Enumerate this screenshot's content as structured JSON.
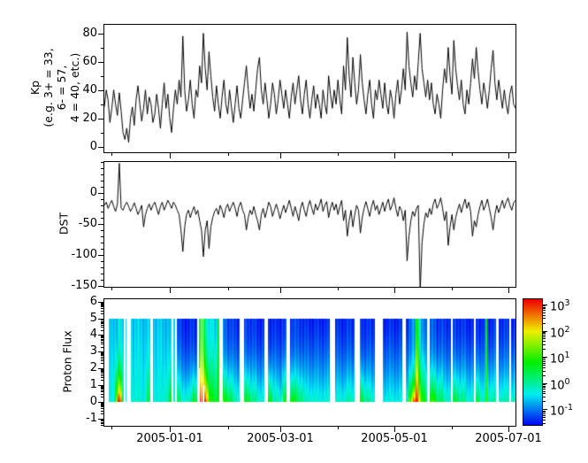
{
  "figure": {
    "background": "#ffffff",
    "line_color": "#000000",
    "frame_color": "#000000"
  },
  "x_axis": {
    "epoch_note": "day 0 = left edge of shared x axis",
    "range_days": [
      0,
      220
    ],
    "major_ticks": [
      {
        "day": 35,
        "label": "2005-01-01"
      },
      {
        "day": 94,
        "label": "2005-03-01"
      },
      {
        "day": 155,
        "label": "2005-05-01"
      },
      {
        "day": 216,
        "label": "2005-07-01"
      }
    ],
    "minor_tick_days": [
      4,
      66,
      125,
      186
    ]
  },
  "chart_data": [
    {
      "type": "line",
      "id": "kp",
      "ylabel_lines": [
        "Kp",
        "(e.g. 3+ = 33,",
        "6- = 57,",
        "4 = 40, etc.)"
      ],
      "ylim": [
        -4,
        86
      ],
      "yticks": [
        0,
        20,
        40,
        60,
        80
      ],
      "y_minor_step": 10,
      "line_color": "#000000",
      "x_range": [
        0,
        220
      ],
      "values": [
        28,
        40,
        33,
        17,
        27,
        40,
        30,
        22,
        38,
        25,
        10,
        5,
        13,
        3,
        20,
        28,
        15,
        33,
        43,
        30,
        18,
        27,
        40,
        23,
        35,
        30,
        17,
        23,
        37,
        27,
        13,
        30,
        45,
        27,
        37,
        20,
        10,
        27,
        40,
        30,
        47,
        35,
        78,
        40,
        25,
        33,
        47,
        30,
        20,
        40,
        35,
        57,
        45,
        80,
        55,
        40,
        67,
        50,
        35,
        25,
        43,
        30,
        20,
        35,
        47,
        30,
        23,
        40,
        28,
        17,
        30,
        43,
        27,
        20,
        33,
        45,
        57,
        40,
        27,
        37,
        25,
        40,
        55,
        63,
        40,
        30,
        45,
        33,
        20,
        30,
        45,
        37,
        23,
        33,
        47,
        37,
        27,
        40,
        30,
        20,
        35,
        45,
        30,
        40,
        50,
        33,
        23,
        37,
        47,
        30,
        20,
        33,
        43,
        27,
        37,
        30,
        20,
        40,
        30,
        23,
        50,
        37,
        27,
        40,
        30,
        47,
        33,
        23,
        57,
        40,
        77,
        50,
        35,
        63,
        45,
        30,
        40,
        65,
        45,
        33,
        23,
        37,
        47,
        30,
        20,
        40,
        33,
        47,
        37,
        27,
        45,
        30,
        23,
        40,
        33,
        20,
        37,
        47,
        30,
        40,
        55,
        40,
        81,
        57,
        45,
        35,
        50,
        40,
        60,
        80,
        55,
        45,
        35,
        47,
        33,
        45,
        30,
        23,
        37,
        30,
        20,
        40,
        55,
        45,
        70,
        50,
        37,
        75,
        55,
        43,
        33,
        47,
        30,
        23,
        40,
        30,
        45,
        62,
        48,
        70,
        53,
        40,
        30,
        45,
        37,
        27,
        40,
        55,
        68,
        45,
        33,
        47,
        37,
        27,
        40,
        30,
        23,
        37,
        43,
        30,
        27
      ]
    },
    {
      "type": "line",
      "id": "dst",
      "ylabel": "DST",
      "ylim": [
        -152,
        50
      ],
      "yticks": [
        0,
        -50,
        -100,
        -150
      ],
      "y_minor_step": 10,
      "line_color": "#000000",
      "x_range": [
        0,
        220
      ],
      "values": [
        -20,
        -15,
        -25,
        -18,
        -12,
        -22,
        -30,
        -18,
        48,
        -25,
        -28,
        -20,
        -15,
        -22,
        -30,
        -24,
        -16,
        -25,
        -35,
        -28,
        -20,
        -55,
        -35,
        -25,
        -18,
        -28,
        -20,
        -15,
        -25,
        -35,
        -22,
        -15,
        -28,
        -20,
        -12,
        -18,
        -25,
        -15,
        -20,
        -28,
        -35,
        -60,
        -95,
        -55,
        -35,
        -28,
        -40,
        -30,
        -22,
        -35,
        -28,
        -45,
        -60,
        -103,
        -60,
        -45,
        -90,
        -55,
        -40,
        -30,
        -25,
        -35,
        -20,
        -28,
        -40,
        -25,
        -18,
        -30,
        -22,
        -15,
        -25,
        -38,
        -22,
        -15,
        -28,
        -35,
        -60,
        -40,
        -28,
        -35,
        -22,
        -35,
        -45,
        -60,
        -35,
        -25,
        -40,
        -28,
        -15,
        -22,
        -38,
        -28,
        -18,
        -28,
        -42,
        -30,
        -20,
        -32,
        -22,
        -12,
        -25,
        -38,
        -22,
        -32,
        -45,
        -25,
        -15,
        -28,
        -38,
        -22,
        -12,
        -25,
        -35,
        -18,
        -28,
        -20,
        -10,
        -30,
        -20,
        -14,
        -40,
        -25,
        -15,
        -28,
        -18,
        -35,
        -22,
        -12,
        -45,
        -28,
        -70,
        -45,
        -28,
        -55,
        -35,
        -20,
        -28,
        -65,
        -40,
        -25,
        -14,
        -26,
        -38,
        -22,
        -12,
        -28,
        -20,
        -35,
        -25,
        -15,
        -30,
        -18,
        -10,
        -28,
        -20,
        -8,
        -25,
        -38,
        -22,
        -28,
        -45,
        -28,
        -110,
        -70,
        -45,
        -30,
        -38,
        -25,
        -20,
        -160,
        -80,
        -50,
        -32,
        -40,
        -25,
        -35,
        -18,
        -10,
        -25,
        -18,
        -8,
        -25,
        -45,
        -30,
        -85,
        -55,
        -35,
        -60,
        -40,
        -28,
        -18,
        -32,
        -20,
        -10,
        -25,
        -15,
        -30,
        -70,
        -45,
        -55,
        -35,
        -22,
        -12,
        -28,
        -20,
        -10,
        -25,
        -40,
        -60,
        -35,
        -20,
        -32,
        -22,
        -12,
        -25,
        -15,
        -8,
        -20,
        -28,
        -16,
        -12
      ]
    },
    {
      "type": "heatmap",
      "id": "proton_flux",
      "ylabel": "Proton Flux",
      "ylim": [
        -1.45,
        6.15
      ],
      "yticks": [
        -1,
        0,
        1,
        2,
        3,
        4,
        5,
        6
      ],
      "y_minor": "log-decade-pattern",
      "data_y_range": [
        0,
        5
      ],
      "colorbar": {
        "scale": "log10",
        "tick_exponents": [
          3,
          2,
          1,
          0,
          -1
        ],
        "range_log10": [
          -1.6,
          3.2
        ],
        "colormap": "rainbow-blue-to-red",
        "color_low": "#0000ee",
        "color_high": "#ee0000"
      },
      "segments": [
        {
          "d0": 2.0,
          "d1": 10.3,
          "cols": [
            {
              "w": 2.3,
              "b": -0.35,
              "t": -0.6,
              "p": 1
            },
            {
              "w": 1.0,
              "b": -0.2,
              "t": -0.6,
              "p": 1.3
            },
            {
              "w": 0.8,
              "b": 0.6,
              "t": -0.7,
              "p": 2
            },
            {
              "w": 0.8,
              "b": 1.6,
              "t": -0.8,
              "p": 2.4
            },
            {
              "w": 1.3,
              "b": 3.0,
              "t": -0.4,
              "p": 2.8
            },
            {
              "w": 1.1,
              "b": 2.7,
              "t": -0.5,
              "p": 2.8
            },
            {
              "w": 1.0,
              "b": 0.2,
              "t": -0.6,
              "p": 1.5
            }
          ]
        },
        {
          "d0": 10.9,
          "d1": 11.5,
          "cols": [
            {
              "w": 0.6,
              "b": -0.35,
              "t": -0.6,
              "p": 1
            }
          ]
        },
        {
          "d0": 13.8,
          "d1": 24.6,
          "cols": [
            {
              "w": 5.0,
              "b": -0.3,
              "t": -0.6,
              "p": 1.2
            },
            {
              "w": 3.0,
              "b": -0.35,
              "t": -0.65,
              "p": 1.2
            },
            {
              "w": 2.8,
              "b": 0.3,
              "t": -0.6,
              "p": 1.8
            }
          ]
        },
        {
          "d0": 25.8,
          "d1": 35.8,
          "cols": [
            {
              "w": 6.0,
              "b": -0.35,
              "t": -0.65,
              "p": 1.2
            },
            {
              "w": 2.5,
              "b": -0.1,
              "t": -0.7,
              "p": 1.5
            },
            {
              "w": 1.5,
              "b": 0.7,
              "t": -0.75,
              "p": 2.4
            }
          ]
        },
        {
          "d0": 36.9,
          "d1": 37.4,
          "cols": [
            {
              "w": 0.5,
              "b": -0.4,
              "t": -0.6,
              "p": 1
            }
          ]
        },
        {
          "d0": 38.6,
          "d1": 49.4,
          "cols": [
            {
              "w": 2.0,
              "b": 0.3,
              "t": -1.3,
              "p": 2
            },
            {
              "w": 3.0,
              "b": -0.2,
              "t": -1.45,
              "p": 1.8
            },
            {
              "w": 3.0,
              "b": -0.1,
              "t": -1.45,
              "p": 2
            },
            {
              "w": 2.8,
              "b": 0.6,
              "t": -1.4,
              "p": 2.4
            }
          ]
        },
        {
          "d0": 50.4,
          "d1": 61.4,
          "cols": [
            {
              "w": 0.4,
              "b": 2.2,
              "t": 0.4,
              "p": 1.5,
              "h0": 2
            },
            {
              "w": 0.7,
              "b": 3.1,
              "t": 0.6,
              "p": 2
            },
            {
              "w": 0.3,
              "g": 1
            },
            {
              "w": 0.6,
              "b": 3.2,
              "t": 0.8,
              "p": 2.2
            },
            {
              "w": 0.3,
              "g": 1
            },
            {
              "w": 0.5,
              "b": 3.0,
              "t": 0.4,
              "p": 2,
              "h0": 1
            },
            {
              "w": 1.1,
              "b": 3.1,
              "t": 0.2,
              "p": 2.4
            },
            {
              "w": 1.5,
              "b": 2.4,
              "t": -0.3,
              "p": 2.6
            },
            {
              "w": 2.1,
              "b": 0.9,
              "t": -0.5,
              "p": 2
            },
            {
              "w": 2.5,
              "b": 0.6,
              "t": -0.6,
              "p": 1.8
            },
            {
              "w": 1.0,
              "b": 0.9,
              "t": 0.6,
              "p": 1
            }
          ]
        },
        {
          "d0": 63.0,
          "d1": 72.0,
          "cols": [
            {
              "w": 2.5,
              "b": 0.9,
              "t": -1.1,
              "p": 2.6
            },
            {
              "w": 3.0,
              "b": 0.5,
              "t": -1.3,
              "p": 2.2
            },
            {
              "w": 3.5,
              "b": -0.1,
              "t": -1.4,
              "p": 1.8
            }
          ]
        },
        {
          "d0": 74.6,
          "d1": 85.6,
          "cols": [
            {
              "w": 3.0,
              "b": 0.7,
              "t": -1.3,
              "p": 2.4
            },
            {
              "w": 4.0,
              "b": 0.1,
              "t": -1.4,
              "p": 2
            },
            {
              "w": 4.0,
              "b": -0.2,
              "t": -1.45,
              "p": 1.8
            }
          ]
        },
        {
          "d0": 87.2,
          "d1": 97.4,
          "cols": [
            {
              "w": 2.5,
              "b": 0.8,
              "t": -1.4,
              "p": 2.4
            },
            {
              "w": 3.5,
              "b": -0.1,
              "t": -1.45,
              "p": 1.8
            },
            {
              "w": 1.5,
              "b": -0.2,
              "t": -1.45,
              "p": 1.8
            },
            {
              "w": 0.6,
              "b": 1.9,
              "t": -1.2,
              "p": 3.2
            },
            {
              "w": 2.1,
              "b": 0.5,
              "t": -1.4,
              "p": 2
            }
          ]
        },
        {
          "d0": 99.3,
          "d1": 120.2,
          "cols": [
            {
              "w": 3.0,
              "b": 0.8,
              "t": -1.3,
              "p": 2.4
            },
            {
              "w": 4.0,
              "b": 0.3,
              "t": -1.35,
              "p": 2
            },
            {
              "w": 6.0,
              "b": -0.2,
              "t": -1.45,
              "p": 1.6
            },
            {
              "w": 7.9,
              "b": -0.3,
              "t": -1.45,
              "p": 1.5
            }
          ]
        },
        {
          "d0": 123.4,
          "d1": 133.6,
          "cols": [
            {
              "w": 5.0,
              "b": -0.3,
              "t": -1.45,
              "p": 1.6
            },
            {
              "w": 5.2,
              "b": -0.1,
              "t": -1.4,
              "p": 1.8
            }
          ]
        },
        {
          "d0": 136.6,
          "d1": 144.4,
          "cols": [
            {
              "w": 2.0,
              "b": 0.7,
              "t": -1.35,
              "p": 2.4
            },
            {
              "w": 3.0,
              "b": 0.1,
              "t": -1.4,
              "p": 2
            },
            {
              "w": 2.8,
              "b": -0.2,
              "t": -1.45,
              "p": 1.7
            }
          ]
        },
        {
          "d0": 148.9,
          "d1": 159.4,
          "cols": [
            {
              "w": 10.5,
              "b": -0.35,
              "t": -1.45,
              "p": 1.5
            }
          ]
        },
        {
          "d0": 161.0,
          "d1": 172.4,
          "cols": [
            {
              "w": 1.5,
              "b": -0.2,
              "t": -1.4,
              "p": 1.6
            },
            {
              "w": 1.5,
              "b": 1.2,
              "t": -1.2,
              "p": 2.8
            },
            {
              "w": 1.0,
              "b": 1.9,
              "t": -1.0,
              "p": 3
            },
            {
              "w": 1.5,
              "b": 2.8,
              "t": -0.8,
              "p": 3.2
            },
            {
              "w": 1.2,
              "b": 3.1,
              "t": 0.8,
              "p": 1.7
            },
            {
              "w": 1.3,
              "b": 1.8,
              "t": -0.3,
              "p": 2.4
            },
            {
              "w": 2.4,
              "b": 0.9,
              "t": -1.0,
              "p": 2
            },
            {
              "w": 1.0,
              "b": 0.3,
              "t": -1.2,
              "p": 1.8
            }
          ]
        },
        {
          "d0": 174.0,
          "d1": 185.0,
          "cols": [
            {
              "w": 3.0,
              "b": 1.0,
              "t": -1.2,
              "p": 2.4
            },
            {
              "w": 4.0,
              "b": 0.4,
              "t": -1.35,
              "p": 2
            },
            {
              "w": 4.0,
              "b": -0.1,
              "t": -1.4,
              "p": 1.8
            }
          ]
        },
        {
          "d0": 186.4,
          "d1": 197.4,
          "cols": [
            {
              "w": 3.0,
              "b": 0.5,
              "t": -1.35,
              "p": 2.2
            },
            {
              "w": 4.0,
              "b": 0.1,
              "t": -1.4,
              "p": 1.9
            },
            {
              "w": 4.0,
              "b": -0.2,
              "t": -1.45,
              "p": 1.7
            }
          ]
        },
        {
          "d0": 198.4,
          "d1": 209.4,
          "cols": [
            {
              "w": 2.5,
              "b": 0.5,
              "t": -1.35,
              "p": 2.2
            },
            {
              "w": 3.0,
              "b": -0.2,
              "t": -1.45,
              "p": 1.7
            },
            {
              "w": 0.9,
              "b": 1.1,
              "t": 0.8,
              "p": 1.2
            },
            {
              "w": 4.6,
              "b": 0.0,
              "t": -1.4,
              "p": 1.8
            }
          ]
        },
        {
          "d0": 210.6,
          "d1": 216.6,
          "cols": [
            {
              "w": 6.0,
              "b": -0.1,
              "t": -1.4,
              "p": 1.8
            }
          ]
        },
        {
          "d0": 217.6,
          "d1": 220.0,
          "cols": [
            {
              "w": 2.4,
              "b": -0.2,
              "t": -1.45,
              "p": 1.6
            }
          ]
        }
      ]
    }
  ]
}
